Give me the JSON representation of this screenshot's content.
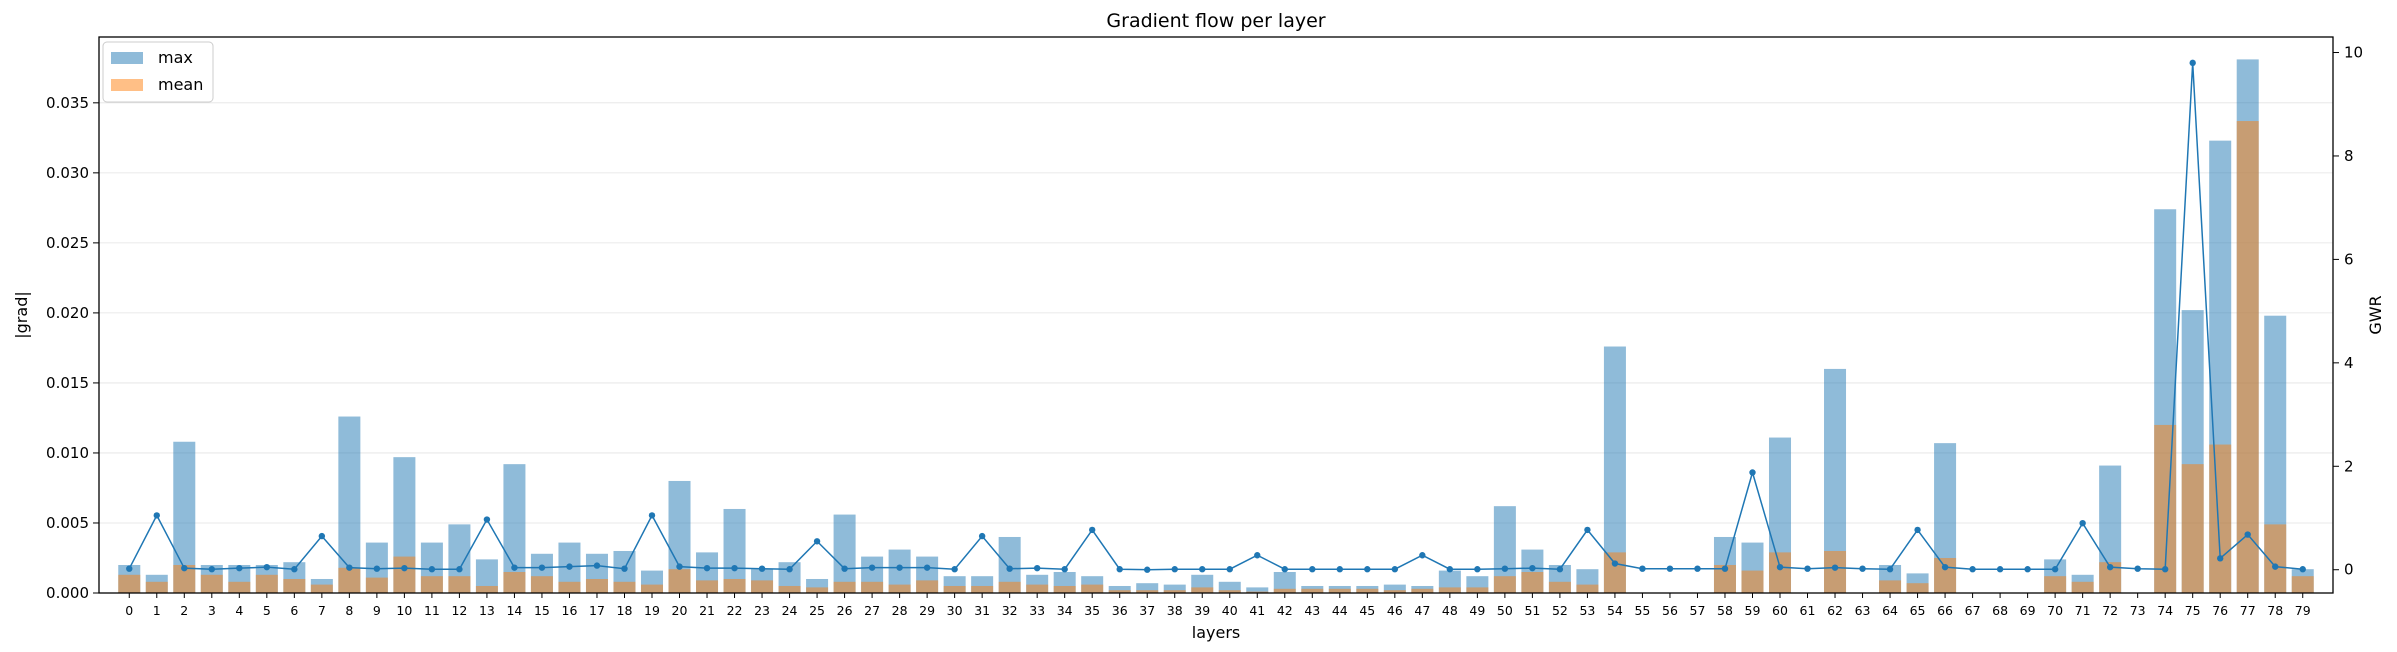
{
  "chart_data": {
    "type": "bar",
    "title": "Gradient flow per layer",
    "xlabel": "layers",
    "ylabel": "|grad|",
    "y2label": "GWR",
    "ylim": [
      0,
      0.0397
    ],
    "y2lim": [
      -0.45,
      10.3
    ],
    "yticks": [
      "0.000",
      "0.005",
      "0.010",
      "0.015",
      "0.020",
      "0.025",
      "0.030",
      "0.035"
    ],
    "y2ticks": [
      "0",
      "2",
      "4",
      "6",
      "8",
      "10"
    ],
    "grid": "horizontal",
    "legend_position": "top-left",
    "categories": [
      "0",
      "1",
      "2",
      "3",
      "4",
      "5",
      "6",
      "7",
      "8",
      "9",
      "10",
      "11",
      "12",
      "13",
      "14",
      "15",
      "16",
      "17",
      "18",
      "19",
      "20",
      "21",
      "22",
      "23",
      "24",
      "25",
      "26",
      "27",
      "28",
      "29",
      "30",
      "31",
      "32",
      "33",
      "34",
      "35",
      "36",
      "37",
      "38",
      "39",
      "40",
      "41",
      "42",
      "43",
      "44",
      "45",
      "46",
      "47",
      "48",
      "49",
      "50",
      "51",
      "52",
      "53",
      "54",
      "55",
      "56",
      "57",
      "58",
      "59",
      "60",
      "61",
      "62",
      "63",
      "64",
      "65",
      "66",
      "67",
      "68",
      "69",
      "70",
      "71",
      "72",
      "73",
      "74",
      "75",
      "76",
      "77",
      "78",
      "79"
    ],
    "series": [
      {
        "name": "max",
        "kind": "bar",
        "color": "#1f77b4",
        "opacity": 0.5,
        "values": [
          0.002,
          0.0013,
          0.0108,
          0.002,
          0.002,
          0.002,
          0.0022,
          0.001,
          0.0126,
          0.0036,
          0.0097,
          0.0036,
          0.0049,
          0.0024,
          0.0092,
          0.0028,
          0.0036,
          0.0028,
          0.003,
          0.0016,
          0.008,
          0.0029,
          0.006,
          0.0017,
          0.0022,
          0.001,
          0.0056,
          0.0026,
          0.0031,
          0.0026,
          0.0012,
          0.0012,
          0.004,
          0.0013,
          0.0015,
          0.0012,
          0.0005,
          0.0007,
          0.0006,
          0.0013,
          0.0008,
          0.0004,
          0.0015,
          0.0005,
          0.0005,
          0.0005,
          0.0006,
          0.0005,
          0.0016,
          0.0012,
          0.0062,
          0.0031,
          0.002,
          0.0017,
          0.0176,
          0.0,
          0.0,
          0.0,
          0.004,
          0.0036,
          0.0111,
          0.0,
          0.016,
          0.0,
          0.002,
          0.0014,
          0.0107,
          0.0,
          0.0,
          0.0,
          0.0024,
          0.0013,
          0.0091,
          0.0,
          0.0274,
          0.0202,
          0.0323,
          0.0381,
          0.0198,
          0.0017
        ]
      },
      {
        "name": "mean",
        "kind": "bar",
        "color": "#ff7f0e",
        "opacity": 0.5,
        "values": [
          0.0013,
          0.0008,
          0.002,
          0.0013,
          0.0008,
          0.0013,
          0.001,
          0.0006,
          0.0018,
          0.0011,
          0.0026,
          0.0012,
          0.0012,
          0.0005,
          0.0015,
          0.0012,
          0.0008,
          0.001,
          0.0008,
          0.0006,
          0.0017,
          0.0009,
          0.001,
          0.0009,
          0.0005,
          0.0004,
          0.0008,
          0.0008,
          0.0006,
          0.0009,
          0.0005,
          0.0005,
          0.0008,
          0.0006,
          0.0005,
          0.0006,
          0.0002,
          0.0002,
          0.0002,
          0.0004,
          0.0002,
          0.0001,
          0.0003,
          0.0003,
          0.0003,
          0.0003,
          0.0002,
          0.0003,
          0.0004,
          0.0004,
          0.0012,
          0.0015,
          0.0008,
          0.0006,
          0.0029,
          0.0,
          0.0,
          0.0,
          0.002,
          0.0016,
          0.0029,
          0.0,
          0.003,
          0.0,
          0.0009,
          0.0007,
          0.0025,
          0.0,
          0.0,
          0.0,
          0.0012,
          0.0008,
          0.0022,
          0.0,
          0.012,
          0.0092,
          0.0106,
          0.0337,
          0.0049,
          0.0012
        ]
      },
      {
        "name": "GWR",
        "kind": "line",
        "axis": "right",
        "color": "#1f77b4",
        "values": [
          0.02,
          1.05,
          0.03,
          0.01,
          0.03,
          0.05,
          0.01,
          0.65,
          0.04,
          0.02,
          0.03,
          0.01,
          0.01,
          0.97,
          0.04,
          0.04,
          0.06,
          0.08,
          0.02,
          1.05,
          0.06,
          0.03,
          0.03,
          0.02,
          0.01,
          0.55,
          0.02,
          0.04,
          0.04,
          0.04,
          0.01,
          0.65,
          0.02,
          0.03,
          0.01,
          0.77,
          0.01,
          0.0,
          0.01,
          0.01,
          0.01,
          0.28,
          0.01,
          0.01,
          0.01,
          0.01,
          0.01,
          0.28,
          0.01,
          0.01,
          0.02,
          0.03,
          0.01,
          0.77,
          0.12,
          0.02,
          0.02,
          0.02,
          0.02,
          1.88,
          0.05,
          0.02,
          0.04,
          0.02,
          0.01,
          0.77,
          0.05,
          0.01,
          0.01,
          0.01,
          0.01,
          0.9,
          0.05,
          0.02,
          0.01,
          9.8,
          0.22,
          0.68,
          0.06,
          0.01
        ]
      }
    ]
  }
}
